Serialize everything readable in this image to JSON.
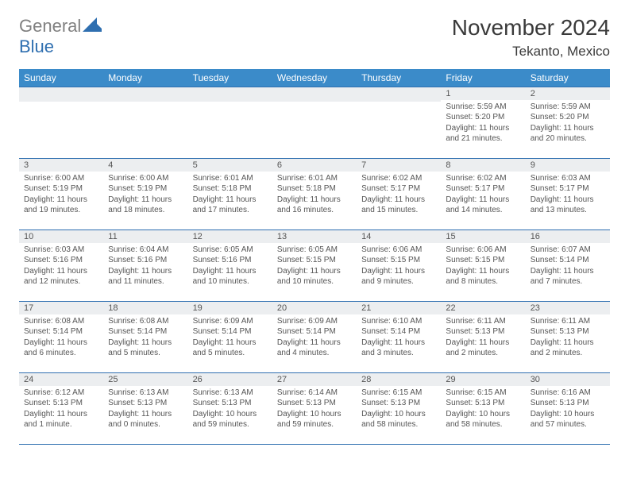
{
  "logo": {
    "general": "General",
    "blue": "Blue"
  },
  "title": "November 2024",
  "location": "Tekanto, Mexico",
  "colors": {
    "header_bg": "#3b8bc9",
    "header_fg": "#ffffff",
    "border": "#2f6fb0",
    "daynum_bg": "#eceef0",
    "text": "#555555",
    "logo_gray": "#808080",
    "logo_blue": "#2f6fb0"
  },
  "weekdays": [
    "Sunday",
    "Monday",
    "Tuesday",
    "Wednesday",
    "Thursday",
    "Friday",
    "Saturday"
  ],
  "weeks": [
    [
      null,
      null,
      null,
      null,
      null,
      {
        "n": "1",
        "sunrise": "5:59 AM",
        "sunset": "5:20 PM",
        "daylight": "11 hours and 21 minutes."
      },
      {
        "n": "2",
        "sunrise": "5:59 AM",
        "sunset": "5:20 PM",
        "daylight": "11 hours and 20 minutes."
      }
    ],
    [
      {
        "n": "3",
        "sunrise": "6:00 AM",
        "sunset": "5:19 PM",
        "daylight": "11 hours and 19 minutes."
      },
      {
        "n": "4",
        "sunrise": "6:00 AM",
        "sunset": "5:19 PM",
        "daylight": "11 hours and 18 minutes."
      },
      {
        "n": "5",
        "sunrise": "6:01 AM",
        "sunset": "5:18 PM",
        "daylight": "11 hours and 17 minutes."
      },
      {
        "n": "6",
        "sunrise": "6:01 AM",
        "sunset": "5:18 PM",
        "daylight": "11 hours and 16 minutes."
      },
      {
        "n": "7",
        "sunrise": "6:02 AM",
        "sunset": "5:17 PM",
        "daylight": "11 hours and 15 minutes."
      },
      {
        "n": "8",
        "sunrise": "6:02 AM",
        "sunset": "5:17 PM",
        "daylight": "11 hours and 14 minutes."
      },
      {
        "n": "9",
        "sunrise": "6:03 AM",
        "sunset": "5:17 PM",
        "daylight": "11 hours and 13 minutes."
      }
    ],
    [
      {
        "n": "10",
        "sunrise": "6:03 AM",
        "sunset": "5:16 PM",
        "daylight": "11 hours and 12 minutes."
      },
      {
        "n": "11",
        "sunrise": "6:04 AM",
        "sunset": "5:16 PM",
        "daylight": "11 hours and 11 minutes."
      },
      {
        "n": "12",
        "sunrise": "6:05 AM",
        "sunset": "5:16 PM",
        "daylight": "11 hours and 10 minutes."
      },
      {
        "n": "13",
        "sunrise": "6:05 AM",
        "sunset": "5:15 PM",
        "daylight": "11 hours and 10 minutes."
      },
      {
        "n": "14",
        "sunrise": "6:06 AM",
        "sunset": "5:15 PM",
        "daylight": "11 hours and 9 minutes."
      },
      {
        "n": "15",
        "sunrise": "6:06 AM",
        "sunset": "5:15 PM",
        "daylight": "11 hours and 8 minutes."
      },
      {
        "n": "16",
        "sunrise": "6:07 AM",
        "sunset": "5:14 PM",
        "daylight": "11 hours and 7 minutes."
      }
    ],
    [
      {
        "n": "17",
        "sunrise": "6:08 AM",
        "sunset": "5:14 PM",
        "daylight": "11 hours and 6 minutes."
      },
      {
        "n": "18",
        "sunrise": "6:08 AM",
        "sunset": "5:14 PM",
        "daylight": "11 hours and 5 minutes."
      },
      {
        "n": "19",
        "sunrise": "6:09 AM",
        "sunset": "5:14 PM",
        "daylight": "11 hours and 5 minutes."
      },
      {
        "n": "20",
        "sunrise": "6:09 AM",
        "sunset": "5:14 PM",
        "daylight": "11 hours and 4 minutes."
      },
      {
        "n": "21",
        "sunrise": "6:10 AM",
        "sunset": "5:14 PM",
        "daylight": "11 hours and 3 minutes."
      },
      {
        "n": "22",
        "sunrise": "6:11 AM",
        "sunset": "5:13 PM",
        "daylight": "11 hours and 2 minutes."
      },
      {
        "n": "23",
        "sunrise": "6:11 AM",
        "sunset": "5:13 PM",
        "daylight": "11 hours and 2 minutes."
      }
    ],
    [
      {
        "n": "24",
        "sunrise": "6:12 AM",
        "sunset": "5:13 PM",
        "daylight": "11 hours and 1 minute."
      },
      {
        "n": "25",
        "sunrise": "6:13 AM",
        "sunset": "5:13 PM",
        "daylight": "11 hours and 0 minutes."
      },
      {
        "n": "26",
        "sunrise": "6:13 AM",
        "sunset": "5:13 PM",
        "daylight": "10 hours and 59 minutes."
      },
      {
        "n": "27",
        "sunrise": "6:14 AM",
        "sunset": "5:13 PM",
        "daylight": "10 hours and 59 minutes."
      },
      {
        "n": "28",
        "sunrise": "6:15 AM",
        "sunset": "5:13 PM",
        "daylight": "10 hours and 58 minutes."
      },
      {
        "n": "29",
        "sunrise": "6:15 AM",
        "sunset": "5:13 PM",
        "daylight": "10 hours and 58 minutes."
      },
      {
        "n": "30",
        "sunrise": "6:16 AM",
        "sunset": "5:13 PM",
        "daylight": "10 hours and 57 minutes."
      }
    ]
  ],
  "labels": {
    "sunrise": "Sunrise:",
    "sunset": "Sunset:",
    "daylight": "Daylight:"
  }
}
